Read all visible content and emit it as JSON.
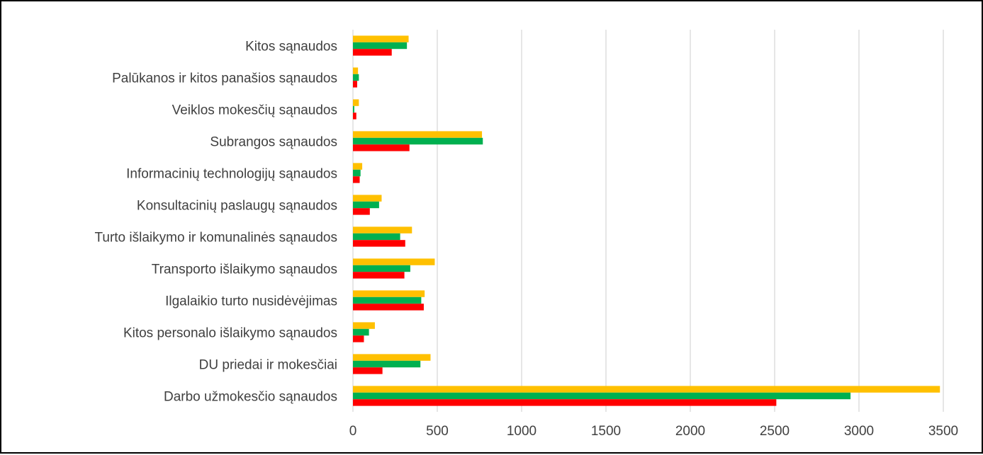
{
  "chart_data": {
    "type": "bar",
    "orientation": "horizontal",
    "title": "",
    "xlabel": "",
    "ylabel": "",
    "xlim": [
      0,
      3500
    ],
    "xticks": [
      "0",
      "500",
      "1000",
      "1500",
      "2000",
      "2500",
      "3000",
      "3500"
    ],
    "xtick_values": [
      0,
      500,
      1000,
      1500,
      2000,
      2500,
      3000,
      3500
    ],
    "grid": "vertical",
    "legend": "none",
    "categories": [
      "Kitos  sąnaudos",
      "Palūkanos ir kitos panašios sąnaudos",
      "Veiklos mokesčių sąnaudos",
      "Subrangos sąnaudos",
      "Informacinių technologijų sąnaudos",
      "Konsultacinių  paslaugų sąnaudos",
      "Turto išlaikymo ir komunalinės sąnaudos",
      "Transporto išlaikymo sąnaudos",
      "Ilgalaikio turto nusidėvėjimas",
      "Kitos personalo išlaikymo sąnaudos",
      "DU priedai ir mokesčiai",
      "Darbo užmokesčio sąnaudos"
    ],
    "series": [
      {
        "color": "#FFC000",
        "values": [
          330,
          30,
          35,
          765,
          55,
          170,
          350,
          485,
          425,
          130,
          460,
          3480
        ]
      },
      {
        "color": "#00B050",
        "values": [
          320,
          35,
          8,
          770,
          45,
          155,
          280,
          340,
          405,
          95,
          400,
          2950
        ]
      },
      {
        "color": "#FF0000",
        "values": [
          230,
          25,
          20,
          335,
          40,
          100,
          310,
          305,
          420,
          65,
          175,
          2510
        ]
      }
    ]
  }
}
